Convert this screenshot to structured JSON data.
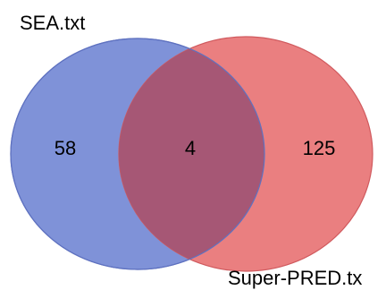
{
  "venn": {
    "sets": [
      {
        "label": "SEA.txt",
        "color": "#7f92d8",
        "stroke": "#5f72c0"
      },
      {
        "label": "Super-PRED.tx",
        "color": "#ea7f80",
        "stroke": "#d05a5e"
      }
    ],
    "regions": {
      "left_only": "58",
      "overlap": "4",
      "right_only": "125"
    },
    "overlap_color": "#a65775"
  }
}
